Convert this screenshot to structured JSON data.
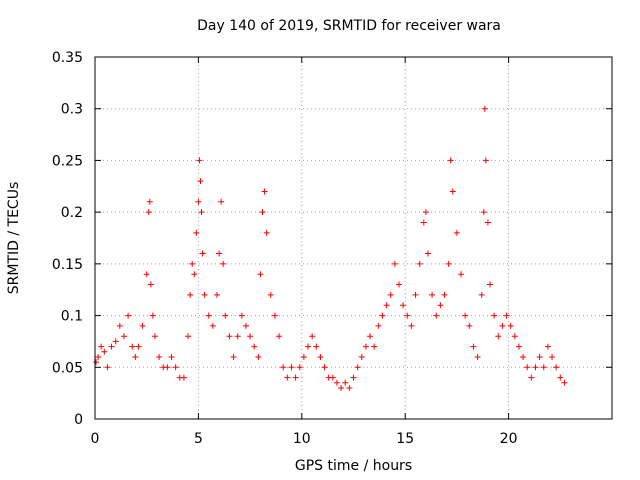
{
  "chart_data": {
    "type": "scatter",
    "title": "Day 140 of 2019, SRMTID for receiver wara",
    "xlabel": "GPS time / hours",
    "ylabel": "SRMTID / TECUs",
    "xlim": [
      0,
      25
    ],
    "ylim": [
      0,
      0.35
    ],
    "xticks": [
      0,
      5,
      10,
      15,
      20
    ],
    "xtick_labels": [
      "0",
      "5",
      "10",
      "15",
      "20"
    ],
    "yticks": [
      0,
      0.05,
      0.1,
      0.15,
      0.2,
      0.25,
      0.3,
      0.35
    ],
    "ytick_labels": [
      "0",
      "0.05",
      "0.1",
      "0.15",
      "0.2",
      "0.25",
      "0.3",
      "0.35"
    ],
    "grid": true,
    "marker": "+",
    "color": "#ff0000",
    "series": [
      {
        "name": "SRMTID",
        "x": [
          0.05,
          0.15,
          0.3,
          0.45,
          0.6,
          0.8,
          1.0,
          1.2,
          1.4,
          1.6,
          1.8,
          1.95,
          2.1,
          2.3,
          2.5,
          2.6,
          2.65,
          2.7,
          2.8,
          2.9,
          3.1,
          3.3,
          3.5,
          3.7,
          3.9,
          4.1,
          4.3,
          4.5,
          4.6,
          4.7,
          4.8,
          4.9,
          5.0,
          5.05,
          5.1,
          5.15,
          5.2,
          5.3,
          5.5,
          5.7,
          5.9,
          6.0,
          6.1,
          6.2,
          6.3,
          6.5,
          6.7,
          6.9,
          7.1,
          7.3,
          7.5,
          7.7,
          7.9,
          8.0,
          8.1,
          8.2,
          8.3,
          8.5,
          8.7,
          8.9,
          9.1,
          9.3,
          9.5,
          9.7,
          9.9,
          10.1,
          10.3,
          10.5,
          10.7,
          10.9,
          11.1,
          11.3,
          11.5,
          11.7,
          11.9,
          12.1,
          12.3,
          12.5,
          12.7,
          12.9,
          13.1,
          13.3,
          13.5,
          13.7,
          13.9,
          14.1,
          14.3,
          14.5,
          14.7,
          14.9,
          15.1,
          15.3,
          15.5,
          15.7,
          15.9,
          16.0,
          16.1,
          16.3,
          16.5,
          16.7,
          16.9,
          17.1,
          17.2,
          17.3,
          17.5,
          17.7,
          17.9,
          18.1,
          18.3,
          18.5,
          18.7,
          18.8,
          18.85,
          18.9,
          19.0,
          19.1,
          19.3,
          19.5,
          19.7,
          19.9,
          20.1,
          20.3,
          20.5,
          20.7,
          20.9,
          21.1,
          21.3,
          21.5,
          21.7,
          21.9,
          22.1,
          22.3,
          22.5,
          22.7
        ],
        "values": [
          0.055,
          0.06,
          0.07,
          0.065,
          0.05,
          0.07,
          0.075,
          0.09,
          0.08,
          0.1,
          0.07,
          0.06,
          0.07,
          0.09,
          0.14,
          0.2,
          0.21,
          0.13,
          0.1,
          0.08,
          0.06,
          0.05,
          0.05,
          0.06,
          0.05,
          0.04,
          0.04,
          0.08,
          0.12,
          0.15,
          0.14,
          0.18,
          0.21,
          0.25,
          0.23,
          0.2,
          0.16,
          0.12,
          0.1,
          0.09,
          0.12,
          0.16,
          0.21,
          0.15,
          0.1,
          0.08,
          0.06,
          0.08,
          0.1,
          0.09,
          0.08,
          0.07,
          0.06,
          0.14,
          0.2,
          0.22,
          0.18,
          0.12,
          0.1,
          0.08,
          0.05,
          0.04,
          0.05,
          0.04,
          0.05,
          0.06,
          0.07,
          0.08,
          0.07,
          0.06,
          0.05,
          0.04,
          0.04,
          0.035,
          0.03,
          0.035,
          0.03,
          0.04,
          0.05,
          0.06,
          0.07,
          0.08,
          0.07,
          0.09,
          0.1,
          0.11,
          0.12,
          0.15,
          0.13,
          0.11,
          0.1,
          0.09,
          0.12,
          0.15,
          0.19,
          0.2,
          0.16,
          0.12,
          0.1,
          0.11,
          0.12,
          0.15,
          0.25,
          0.22,
          0.18,
          0.14,
          0.1,
          0.09,
          0.07,
          0.06,
          0.12,
          0.2,
          0.3,
          0.25,
          0.19,
          0.13,
          0.1,
          0.08,
          0.09,
          0.1,
          0.09,
          0.08,
          0.07,
          0.06,
          0.05,
          0.04,
          0.05,
          0.06,
          0.05,
          0.07,
          0.06,
          0.05,
          0.04,
          0.035
        ]
      }
    ]
  }
}
